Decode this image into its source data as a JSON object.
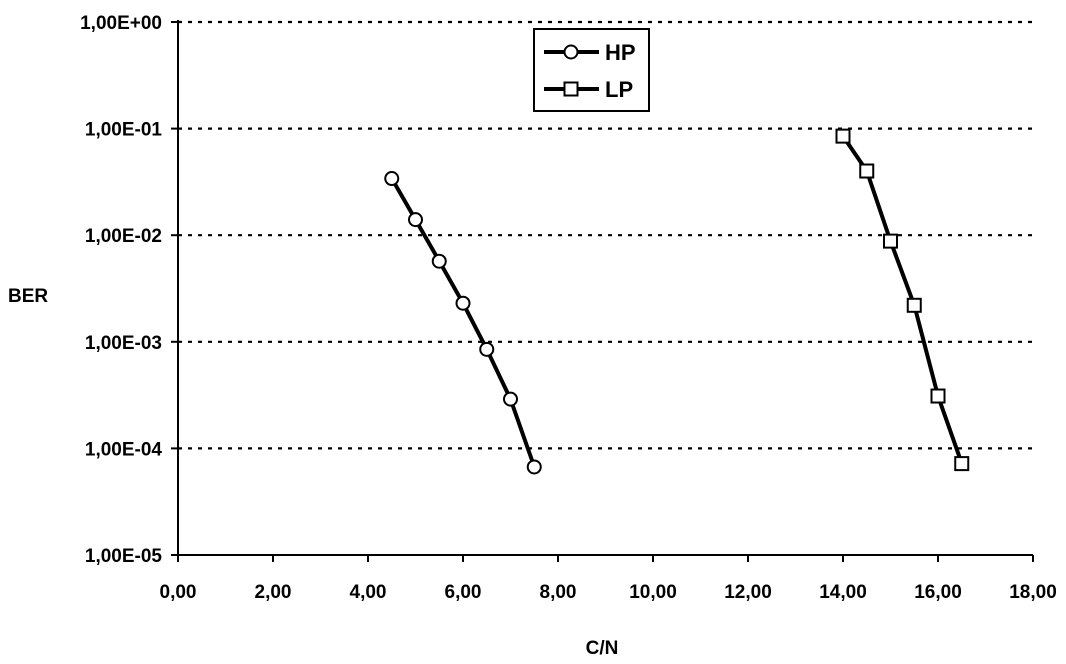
{
  "chart_data": {
    "type": "scatter",
    "xlabel": "C/N",
    "ylabel": "BER",
    "xlim": [
      0,
      18
    ],
    "ylim": [
      1e-05,
      1
    ],
    "y_scale": "log",
    "grid": "horizontal-dotted",
    "legend_position": "top-center",
    "x_ticks": [
      "0,00",
      "2,00",
      "4,00",
      "6,00",
      "8,00",
      "10,00",
      "12,00",
      "14,00",
      "16,00",
      "18,00"
    ],
    "y_ticks": [
      "1,00E+00",
      "1,00E-01",
      "1,00E-02",
      "1,00E-03",
      "1,00E-04",
      "1,00E-05"
    ],
    "series": [
      {
        "name": "HP",
        "marker": "circle",
        "color": "#000000",
        "x": [
          4.5,
          5.0,
          5.5,
          6.0,
          6.5,
          7.0,
          7.5
        ],
        "y": [
          0.034,
          0.014,
          0.0057,
          0.0023,
          0.00085,
          0.00029,
          6.7e-05
        ]
      },
      {
        "name": "LP",
        "marker": "square",
        "color": "#000000",
        "x": [
          14.0,
          14.5,
          15.0,
          15.5,
          16.0,
          16.5
        ],
        "y": [
          0.085,
          0.04,
          0.0088,
          0.0022,
          0.00031,
          7.2e-05
        ]
      }
    ]
  }
}
